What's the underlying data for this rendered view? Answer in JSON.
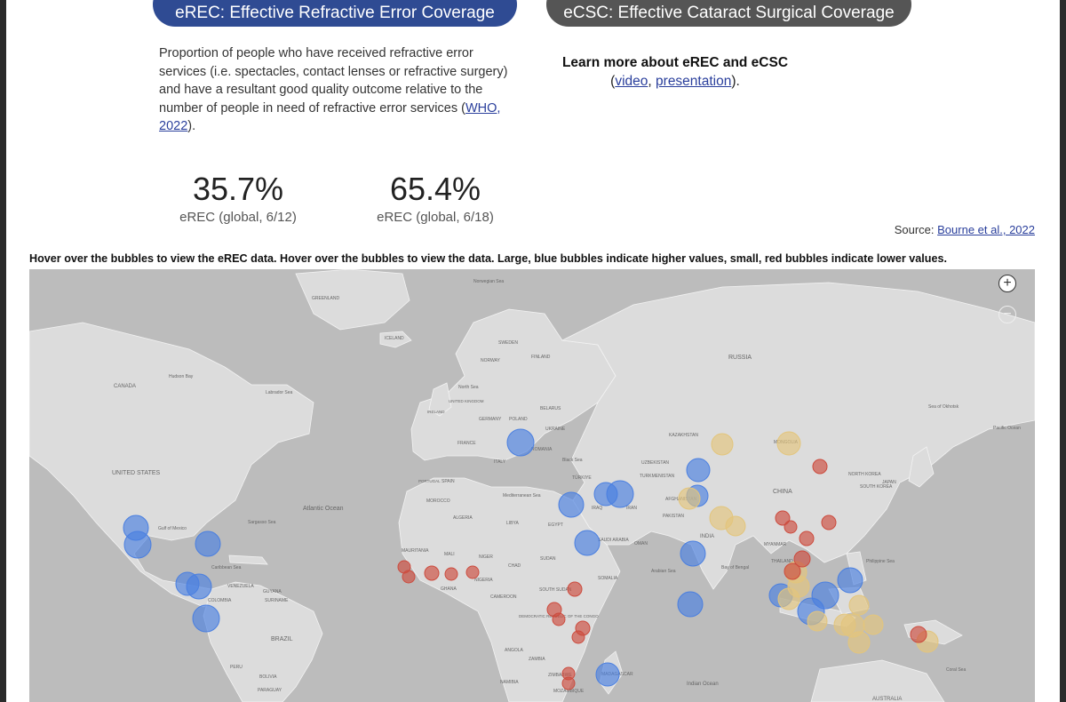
{
  "tabs": {
    "erec_label": "eREC: Effective Refractive Error Coverage",
    "ecsc_label": "eCSC: Effective Cataract Surgical Coverage"
  },
  "description": {
    "text": "Proportion of people who have received refractive error services (i.e. spectacles, contact lenses or refractive surgery) and have a resultant good quality outcome relative to the number of people in need of refractive error services (",
    "link": "WHO, 2022",
    "tail": ")."
  },
  "learn_more": {
    "title": "Learn more about eREC and eCSC",
    "open": "(",
    "video": "video",
    "sep": ", ",
    "presentation": "presentation",
    "close": ")."
  },
  "stats": [
    {
      "value": "35.7%",
      "label": "eREC (global, 6/12)"
    },
    {
      "value": "65.4%",
      "label": "eREC (global, 6/18)"
    }
  ],
  "source": {
    "prefix": "Source: ",
    "link": "Bourne et al., 2022"
  },
  "instruction": "Hover over the bubbles to view the eREC data. Hover over the bubbles to view the data. Large, blue bubbles indicate higher values, small, red bubbles indicate lower values.",
  "map": {
    "zoom_in": "+",
    "zoom_out": "−",
    "colors": {
      "ocean": "#bcbcbc",
      "land": "#dcdcdc",
      "high": "#4a7fe0",
      "mid": "#e3c57c",
      "low": "#cc4b3e"
    },
    "labels": [
      "Norwegian Sea",
      "GREENLAND",
      "ICELAND",
      "SWEDEN",
      "NORWAY",
      "FINLAND",
      "RUSSIA",
      "Hudson Bay",
      "CANADA",
      "Labrador Sea",
      "North Sea",
      "UNITED KINGDOM",
      "IRELAND",
      "POLAND",
      "BELARUS",
      "GERMANY",
      "UKRAINE",
      "FRANCE",
      "ROMANIA",
      "ITALY",
      "SPAIN",
      "PORTUGAL",
      "Black Sea",
      "KAZAKHSTAN",
      "UZBEKISTAN",
      "TURKMENISTAN",
      "MONGOLIA",
      "Sea of Okhotsk",
      "TÜRKIYE",
      "IRAQ",
      "IRAN",
      "AFGHANISTAN",
      "PAKISTAN",
      "CHINA",
      "NORTH KOREA",
      "SOUTH KOREA",
      "JAPAN",
      "UNITED STATES",
      "Gulf of Mexico",
      "Sargasso Sea",
      "Atlantic Ocean",
      "MOROCCO",
      "ALGERIA",
      "LIBYA",
      "EGYPT",
      "Mediterranean Sea",
      "SAUDI ARABIA",
      "OMAN",
      "INDIA",
      "MYANMAR",
      "THAILAND",
      "Philippine Sea",
      "Bay of Bengal",
      "Arabian Sea",
      "Caribbean Sea",
      "VENEZUELA",
      "COLOMBIA",
      "GUYANA",
      "SURINAME",
      "BRAZIL",
      "PERU",
      "BOLIVIA",
      "PARAGUAY",
      "MAURITANIA",
      "MALI",
      "NIGER",
      "CHAD",
      "SUDAN",
      "NIGERIA",
      "GHANA",
      "CAMEROON",
      "SOUTH SUDAN",
      "SOMALIA",
      "DEMOCRATIC REPUBLIC OF THE CONGO",
      "ANGOLA",
      "ZAMBIA",
      "ZIMBABWE",
      "MOZAMBIQUE",
      "NAMIBIA",
      "MADAGASCAR",
      "Indian Ocean",
      "AUSTRALIA",
      "Coral Sea",
      "Pacific Ocean"
    ],
    "bubbles": [
      {
        "level": "high"
      },
      {
        "level": "high"
      },
      {
        "level": "high"
      },
      {
        "level": "high"
      },
      {
        "level": "high"
      },
      {
        "level": "high"
      },
      {
        "level": "high"
      },
      {
        "level": "high"
      },
      {
        "level": "high"
      },
      {
        "level": "high"
      },
      {
        "level": "high"
      },
      {
        "level": "high"
      },
      {
        "level": "high"
      },
      {
        "level": "high"
      },
      {
        "level": "high"
      },
      {
        "level": "high"
      },
      {
        "level": "high"
      },
      {
        "level": "high"
      },
      {
        "level": "high"
      },
      {
        "level": "high"
      },
      {
        "level": "mid"
      },
      {
        "level": "mid"
      },
      {
        "level": "mid"
      },
      {
        "level": "mid"
      },
      {
        "level": "mid"
      },
      {
        "level": "mid"
      },
      {
        "level": "mid"
      },
      {
        "level": "mid"
      },
      {
        "level": "mid"
      },
      {
        "level": "mid"
      },
      {
        "level": "mid"
      },
      {
        "level": "mid"
      },
      {
        "level": "mid"
      },
      {
        "level": "mid"
      },
      {
        "level": "mid"
      },
      {
        "level": "low"
      },
      {
        "level": "low"
      },
      {
        "level": "low"
      },
      {
        "level": "low"
      },
      {
        "level": "low"
      },
      {
        "level": "low"
      },
      {
        "level": "low"
      },
      {
        "level": "low"
      },
      {
        "level": "low"
      },
      {
        "level": "low"
      },
      {
        "level": "low"
      },
      {
        "level": "low"
      },
      {
        "level": "low"
      },
      {
        "level": "low"
      },
      {
        "level": "low"
      },
      {
        "level": "low"
      },
      {
        "level": "low"
      },
      {
        "level": "low"
      },
      {
        "level": "low"
      },
      {
        "level": "low"
      }
    ]
  }
}
